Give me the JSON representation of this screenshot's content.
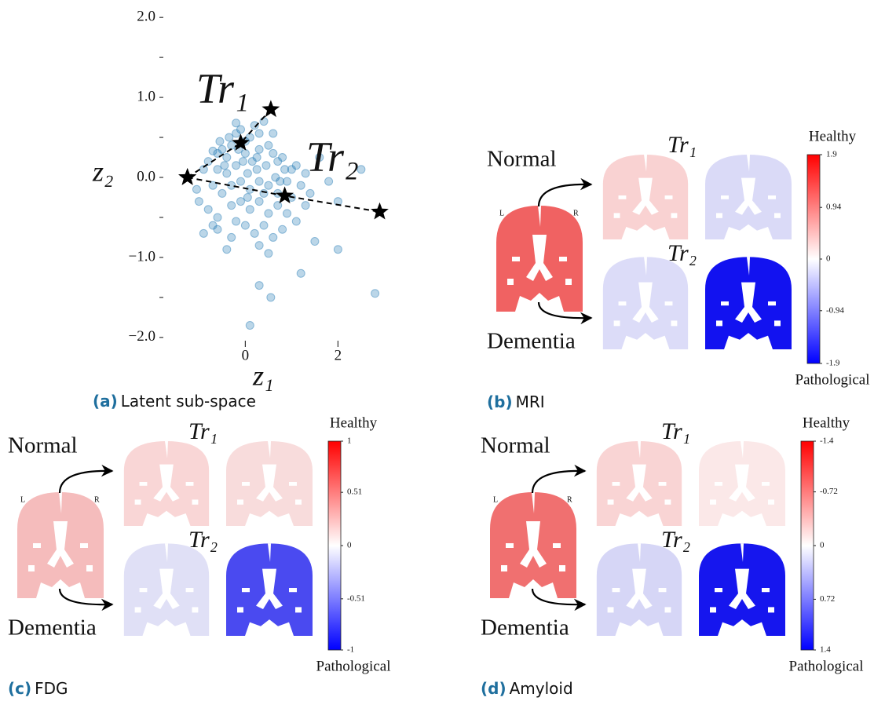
{
  "chart_data": [
    {
      "type": "scatter",
      "xlabel": "z₁",
      "ylabel": "z₂",
      "color": "#1f77b4",
      "xlim": [
        -1.6,
        3.4
      ],
      "ylim": [
        -2.1,
        2.1
      ],
      "xticks": [
        0,
        2
      ],
      "yticks": [
        {
          "value": 2,
          "label": "2.0"
        },
        {
          "value": 1,
          "label": "1.0"
        },
        {
          "value": 0,
          "label": "0.0"
        },
        {
          "value": -1,
          "label": "−1.0"
        },
        {
          "value": -2,
          "label": "−2.0"
        }
      ],
      "yminor": [
        1.5,
        0.5,
        -0.5,
        -1.5
      ],
      "x": [
        -0.7,
        -0.6,
        -0.5,
        -0.4,
        -0.3,
        -0.2,
        -0.1,
        0,
        0.1,
        0.2,
        0.3,
        0.4,
        -0.2,
        0,
        0.15,
        0.3,
        0.5,
        0.6,
        0.7,
        0.8,
        1.0,
        1.1,
        -0.8,
        -0.9,
        -0.6,
        -0.4,
        -0.2,
        0.05,
        0.25,
        0.45,
        0.65,
        0.9,
        1.2,
        1.4,
        -1.0,
        -0.7,
        -0.5,
        -0.3,
        -0.1,
        0.1,
        0.3,
        0.5,
        0.7,
        1.0,
        1.3,
        -0.8,
        -0.6,
        -0.3,
        -0.1,
        0.1,
        0.3,
        0.5,
        0.7,
        0.9,
        -0.9,
        -0.6,
        -0.2,
        0.0,
        0.2,
        0.4,
        0.6,
        0.8,
        0.3,
        0.5,
        -0.3,
        1.1,
        -0.7,
        -0.4,
        1.5,
        2.0,
        2.0,
        1.8,
        1.6,
        2.5,
        0.3,
        1.2,
        0.55,
        0.1,
        2.8,
        -0.35,
        0.25,
        -0.55,
        0.6,
        -0.05,
        0.75,
        1.3,
        -1.05,
        -0.15,
        0.4,
        0.05,
        -0.45,
        0.85
      ],
      "values": [
        0.33,
        0.3,
        0.35,
        0.25,
        0.4,
        0.55,
        0.6,
        0.45,
        0.5,
        0.65,
        0.55,
        0.7,
        0.68,
        0.3,
        0.2,
        0.35,
        0.4,
        0.3,
        0.2,
        0.25,
        0.1,
        0.15,
        0.2,
        0.1,
        0.1,
        0.05,
        0.15,
        0.05,
        0.1,
        0.15,
        0.0,
        -0.05,
        -0.1,
        -0.2,
        -0.3,
        -0.1,
        -0.2,
        -0.1,
        -0.05,
        -0.15,
        -0.05,
        -0.1,
        -0.2,
        -0.25,
        -0.35,
        -0.4,
        -0.5,
        -0.35,
        -0.3,
        -0.4,
        -0.3,
        -0.45,
        -0.35,
        -0.45,
        -0.7,
        -0.65,
        -0.55,
        -0.6,
        -0.7,
        -0.6,
        -0.75,
        -0.65,
        -0.85,
        -0.95,
        -0.75,
        -0.55,
        -0.6,
        -0.9,
        -0.8,
        -0.9,
        -0.3,
        -0.05,
        0.25,
        0.1,
        -1.35,
        -1.2,
        -1.5,
        -1.85,
        -1.45,
        0.5,
        0.25,
        0.45,
        0.55,
        0.2,
        -0.05,
        0.05,
        -0.15,
        0.35,
        -0.2,
        -0.25,
        0.15,
        0.1
      ],
      "trajectories": [
        {
          "label": "Tr₁",
          "x": [
            -1.25,
            -0.1,
            0.55
          ],
          "y": [
            0,
            0.43,
            0.85
          ]
        },
        {
          "label": "Tr₂",
          "x": [
            -1.25,
            0.85,
            2.9
          ],
          "y": [
            0,
            -0.23,
            -0.43
          ]
        }
      ]
    },
    {
      "type": "colorbar",
      "top_label": "Healthy",
      "bottom_label": "Pathological",
      "clim": [
        1.9,
        -1.9
      ],
      "ticks": [
        1.9,
        0.94,
        0,
        -0.94,
        -1.9
      ]
    },
    {
      "type": "colorbar",
      "top_label": "Healthy",
      "bottom_label": "Pathological",
      "clim": [
        1,
        -1
      ],
      "ticks": [
        1,
        0.51,
        0,
        -0.51,
        -1
      ]
    },
    {
      "type": "colorbar",
      "top_label": "Healthy",
      "bottom_label": "Pathological",
      "clim": [
        -1.4,
        1.4
      ],
      "ticks": [
        -1.4,
        -0.72,
        0,
        0.72,
        1.4
      ]
    }
  ],
  "panels": [
    {
      "caption": {
        "label": "(a)",
        "text": "Latent sub-space"
      }
    },
    {
      "caption": {
        "label": "(b)",
        "text": "MRI"
      },
      "normal": "Normal",
      "dementia": "Dementia",
      "left": "L",
      "right": "R",
      "tr1": "Tr₁",
      "tr2": "Tr₂"
    },
    {
      "caption": {
        "label": "(c)",
        "text": "FDG"
      },
      "normal": "Normal",
      "dementia": "Dementia",
      "left": "L",
      "right": "R",
      "tr1": "Tr₁",
      "tr2": "Tr₂"
    },
    {
      "caption": {
        "label": "(d)",
        "text": "Amyloid"
      },
      "normal": "Normal",
      "dementia": "Dementia",
      "left": "L",
      "right": "R",
      "tr1": "Tr₁",
      "tr2": "Tr₂"
    }
  ]
}
